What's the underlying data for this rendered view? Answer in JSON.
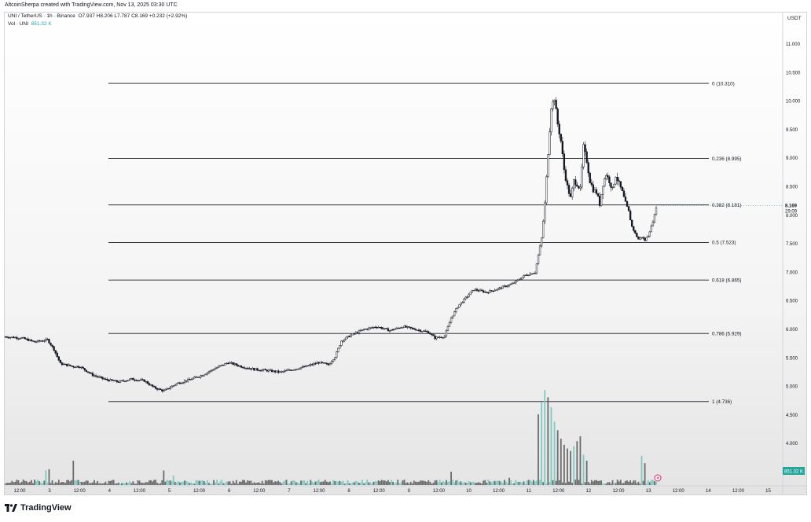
{
  "header": {
    "credit": "AltcoinSherpa created with TradingView.com, Nov 13, 2025 03:30 UTC"
  },
  "legend": {
    "symbol": "UNI / TetherUS · 1h · Binance",
    "ohlc": "O7.937 H8.206 L7.787 C8.169 +0.232 (+2.92%)",
    "vol_label": "Vol · UNI",
    "vol_value": "851.32 K"
  },
  "price_axis": {
    "currency": "USDT",
    "ticks": [
      "11.000",
      "10.500",
      "10.000",
      "9.500",
      "9.000",
      "8.500",
      "8.000",
      "7.500",
      "7.000",
      "6.500",
      "6.000",
      "5.500",
      "5.000",
      "4.500",
      "4.000"
    ],
    "last_price": "8.169",
    "countdown": "29:09",
    "volume_tag": "851.32 K"
  },
  "time_axis": {
    "labels": [
      "12:00",
      "3",
      "12:00",
      "4",
      "12:00",
      "5",
      "12:00",
      "6",
      "12:00",
      "7",
      "12:00",
      "8",
      "12:00",
      "9",
      "12:00",
      "10",
      "12:00",
      "11",
      "12:00",
      "12",
      "12:00",
      "13",
      "12:00",
      "14",
      "12:00",
      "15"
    ]
  },
  "footer": {
    "brand": "TradingView"
  },
  "colors": {
    "up": "#ffffff",
    "down": "#131722",
    "fib_line": "#131722",
    "vol_up": "#7fcac3",
    "vol_down": "#6b6b6b",
    "axis_text": "#131722"
  },
  "chart_data": {
    "type": "candlestick",
    "timeframe": "1h",
    "y_range": [
      3.3,
      11.8
    ],
    "fib_levels": [
      {
        "ratio": "0",
        "price": 10.31,
        "label": "0 (10.310)"
      },
      {
        "ratio": "0.236",
        "price": 8.995,
        "label": "0.236 (8.995)"
      },
      {
        "ratio": "0.382",
        "price": 8.181,
        "label": "0.382 (8.181)"
      },
      {
        "ratio": "0.5",
        "price": 7.523,
        "label": "0.5 (7.523)"
      },
      {
        "ratio": "0.618",
        "price": 6.865,
        "label": "0.618 (6.865)"
      },
      {
        "ratio": "0.786",
        "price": 5.929,
        "label": "0.786 (5.929)"
      },
      {
        "ratio": "1",
        "price": 4.736,
        "label": "1 (4.736)"
      }
    ],
    "price_path": [
      [
        0,
        5.87
      ],
      [
        10,
        5.85
      ],
      [
        18,
        5.78
      ],
      [
        26,
        5.82
      ],
      [
        30,
        5.65
      ],
      [
        34,
        5.4
      ],
      [
        42,
        5.35
      ],
      [
        46,
        5.35
      ],
      [
        54,
        5.2
      ],
      [
        62,
        5.12
      ],
      [
        70,
        5.08
      ],
      [
        78,
        5.13
      ],
      [
        86,
        5.1
      ],
      [
        92,
        4.98
      ],
      [
        98,
        4.92
      ],
      [
        106,
        5.05
      ],
      [
        114,
        5.12
      ],
      [
        122,
        5.2
      ],
      [
        130,
        5.32
      ],
      [
        138,
        5.42
      ],
      [
        146,
        5.35
      ],
      [
        154,
        5.3
      ],
      [
        162,
        5.28
      ],
      [
        170,
        5.25
      ],
      [
        178,
        5.3
      ],
      [
        186,
        5.35
      ],
      [
        194,
        5.42
      ],
      [
        200,
        5.38
      ],
      [
        204,
        5.52
      ],
      [
        208,
        5.8
      ],
      [
        214,
        5.9
      ],
      [
        222,
        6.0
      ],
      [
        230,
        6.05
      ],
      [
        238,
        5.98
      ],
      [
        246,
        6.05
      ],
      [
        254,
        6.0
      ],
      [
        262,
        5.95
      ],
      [
        266,
        5.85
      ],
      [
        272,
        5.88
      ],
      [
        276,
        6.2
      ],
      [
        280,
        6.4
      ],
      [
        284,
        6.52
      ],
      [
        290,
        6.7
      ],
      [
        298,
        6.65
      ],
      [
        306,
        6.72
      ],
      [
        314,
        6.8
      ],
      [
        322,
        6.95
      ],
      [
        328,
        7.0
      ],
      [
        332,
        7.6
      ],
      [
        334,
        8.2
      ],
      [
        336,
        9.1
      ],
      [
        338,
        9.9
      ],
      [
        340,
        10.05
      ],
      [
        342,
        9.6
      ],
      [
        344,
        9.3
      ],
      [
        346,
        8.8
      ],
      [
        348,
        8.5
      ],
      [
        350,
        8.3
      ],
      [
        352,
        8.6
      ],
      [
        354,
        8.55
      ],
      [
        356,
        8.45
      ],
      [
        358,
        9.2
      ],
      [
        360,
        8.95
      ],
      [
        362,
        8.6
      ],
      [
        364,
        8.45
      ],
      [
        366,
        8.4
      ],
      [
        368,
        8.2
      ],
      [
        370,
        8.55
      ],
      [
        372,
        8.72
      ],
      [
        374,
        8.6
      ],
      [
        376,
        8.45
      ],
      [
        378,
        8.7
      ],
      [
        380,
        8.55
      ],
      [
        382,
        8.4
      ],
      [
        384,
        8.2
      ],
      [
        386,
        8.05
      ],
      [
        388,
        7.8
      ],
      [
        390,
        7.68
      ],
      [
        392,
        7.58
      ],
      [
        394,
        7.62
      ],
      [
        396,
        7.56
      ],
      [
        398,
        7.65
      ],
      [
        400,
        7.8
      ],
      [
        402,
        8.0
      ],
      [
        403,
        8.17
      ]
    ],
    "volume": {
      "count": 404,
      "notable_spikes": [
        [
          25,
          0.12
        ],
        [
          27,
          0.13
        ],
        [
          42,
          0.2
        ],
        [
          98,
          0.12
        ],
        [
          104,
          0.08
        ],
        [
          276,
          0.11
        ],
        [
          312,
          0.06
        ],
        [
          330,
          0.58
        ],
        [
          332,
          0.68
        ],
        [
          334,
          0.78
        ],
        [
          336,
          0.72
        ],
        [
          338,
          0.64
        ],
        [
          340,
          0.52
        ],
        [
          342,
          0.45
        ],
        [
          344,
          0.38
        ],
        [
          346,
          0.33
        ],
        [
          348,
          0.3
        ],
        [
          350,
          0.28
        ],
        [
          352,
          0.32
        ],
        [
          354,
          0.36
        ],
        [
          356,
          0.4
        ],
        [
          358,
          0.25
        ],
        [
          360,
          0.2
        ],
        [
          394,
          0.24
        ],
        [
          396,
          0.18
        ]
      ]
    }
  }
}
